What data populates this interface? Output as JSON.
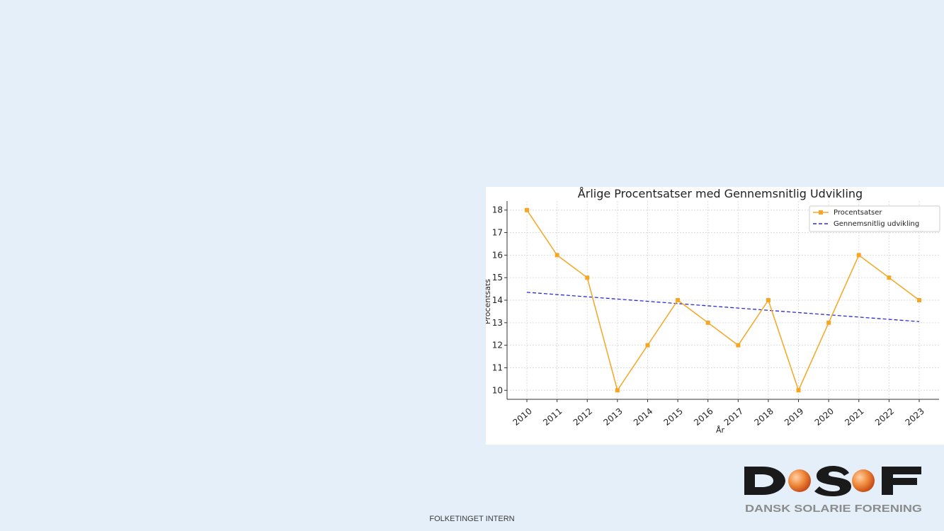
{
  "slide": {
    "footer": "FOLKETINGET INTERN",
    "logo_text": "DSF",
    "logo_subtitle": "DANSK SOLARIE FORENING"
  },
  "colors": {
    "background": "#e4eff9",
    "series_main": "#f5a623",
    "series_trend": "#2b2bd9",
    "logo_dark": "#1a1a1a",
    "logo_orange": "#e8702a",
    "logo_subtitle": "#8c8c8c"
  },
  "chart_data": {
    "type": "line",
    "title": "Årlige Procentsatser med Gennemsnitlig Udvikling",
    "xlabel": "År",
    "ylabel": "Procentsats",
    "x": [
      "2010",
      "2011",
      "2012",
      "2013",
      "2014",
      "2015",
      "2016",
      "2017",
      "2018",
      "2019",
      "2020",
      "2021",
      "2022",
      "2023"
    ],
    "ylim": [
      9.6,
      18.4
    ],
    "yticks": [
      10,
      11,
      12,
      13,
      14,
      15,
      16,
      17,
      18
    ],
    "grid": true,
    "legend_position": "top-right",
    "series": [
      {
        "name": "Procentsatser",
        "style": "solid-line-with-markers",
        "color": "#f5a623",
        "values": [
          18,
          16,
          15,
          10,
          12,
          14,
          13,
          12,
          14,
          10,
          13,
          16,
          15,
          14
        ]
      },
      {
        "name": "Gennemsnitlig udvikling",
        "style": "dashed",
        "color": "#2b2bd9",
        "values": [
          14.35,
          14.25,
          14.15,
          14.05,
          13.95,
          13.85,
          13.75,
          13.65,
          13.55,
          13.45,
          13.35,
          13.25,
          13.15,
          13.05
        ]
      }
    ]
  }
}
